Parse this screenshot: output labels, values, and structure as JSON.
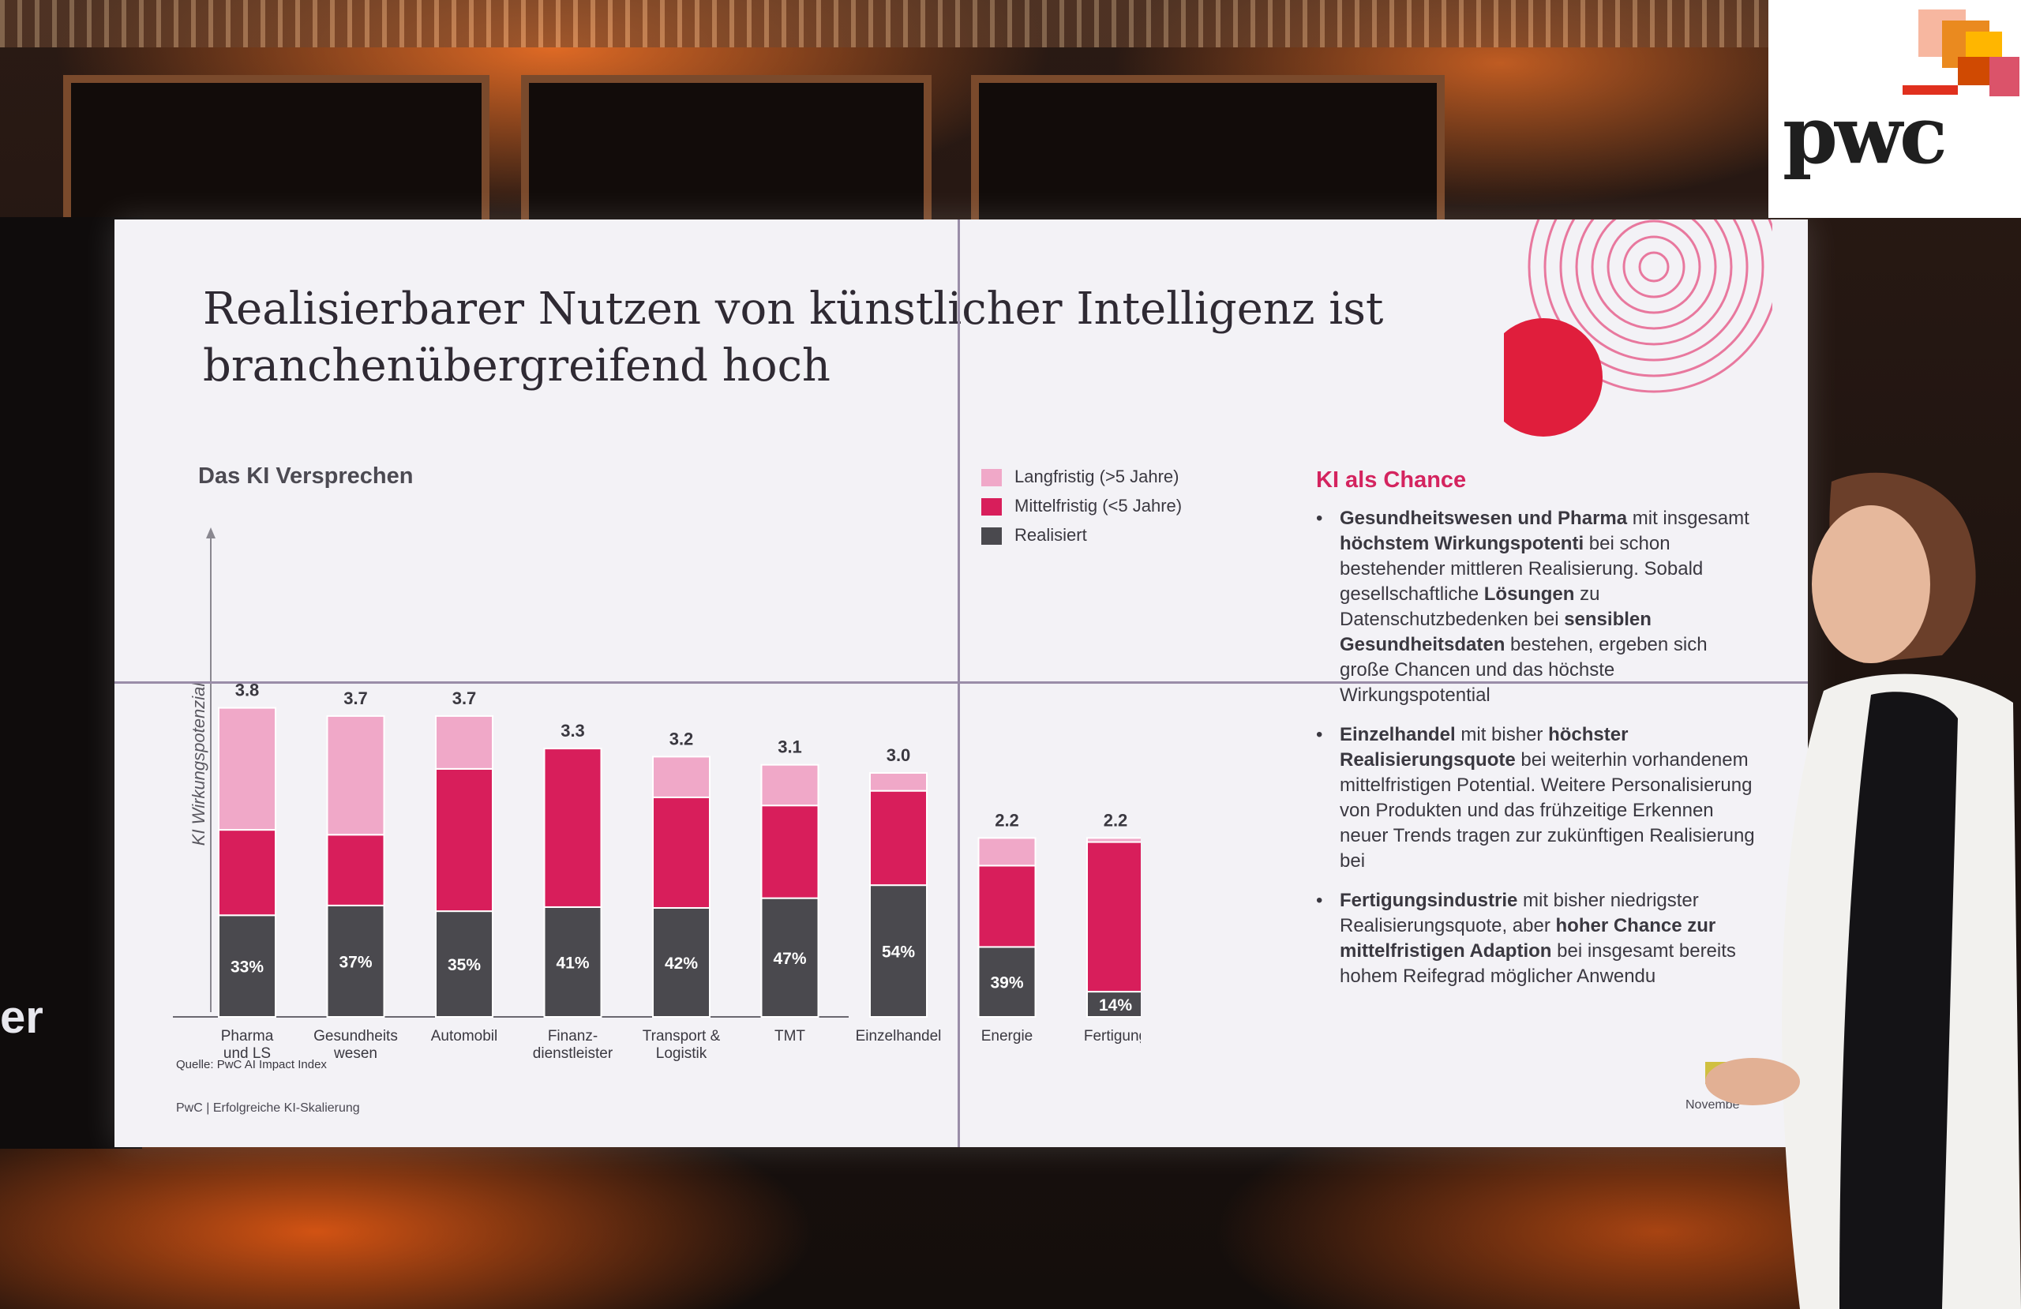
{
  "slide": {
    "title_line1": "Realisierbarer Nutzen von künstlicher Intelligenz ist",
    "title_line2": "branchenübergreifend hoch",
    "section_heading": "Das KI Versprechen",
    "source": "Quelle: PwC AI Impact Index",
    "footer": "PwC | Erfolgreiche KI-Skalierung",
    "footer_right": "Novembe"
  },
  "colors": {
    "langfristig": "#f0a8c8",
    "mittelfristig": "#d81e5b",
    "realisiert": "#4a494e",
    "accent": "#d4245f"
  },
  "chart_data": {
    "type": "bar",
    "stacked": true,
    "ylabel": "KI Wirkungspotenzial",
    "categories": [
      "Pharma und LS",
      "Gesundheitswesen",
      "Automobil",
      "Finanzdienstleister",
      "Transport & Logistik",
      "TMT",
      "Einzelhandel",
      "Energie",
      "Fertigung"
    ],
    "category_label_lines": [
      [
        "Pharma",
        "und LS"
      ],
      [
        "Gesundheits",
        "wesen"
      ],
      [
        "Automobil"
      ],
      [
        "Finanz-",
        "dienstleister"
      ],
      [
        "Transport &",
        "Logistik"
      ],
      [
        "TMT"
      ],
      [
        "Einzelhandel"
      ],
      [
        "Energie"
      ],
      [
        "Fertigung"
      ]
    ],
    "totals": [
      3.8,
      3.7,
      3.7,
      3.3,
      3.2,
      3.1,
      3.0,
      2.2,
      2.2
    ],
    "total_labels": [
      "3.8",
      "3.7",
      "3.7",
      "3.3",
      "3.2",
      "3.1",
      "3.0",
      "2.2",
      "2.2"
    ],
    "realized_share_labels": [
      "33%",
      "37%",
      "35%",
      "41%",
      "42%",
      "47%",
      "54%",
      "39%",
      "14%"
    ],
    "series": [
      {
        "name": "Realisiert",
        "values": [
          1.25,
          1.37,
          1.3,
          1.35,
          1.34,
          1.46,
          1.62,
          0.86,
          0.31
        ]
      },
      {
        "name": "Mittelfristig (<5 Jahre)",
        "values": [
          1.05,
          0.87,
          1.75,
          1.95,
          1.36,
          1.14,
          1.16,
          1.0,
          1.84
        ]
      },
      {
        "name": "Langfristig (>5 Jahre)",
        "values": [
          1.5,
          1.46,
          0.65,
          0.0,
          0.5,
          0.5,
          0.22,
          0.34,
          0.05
        ]
      }
    ],
    "legend_position": "top-right",
    "grid": false
  },
  "legend": [
    {
      "label": "Langfristig (>5 Jahre)",
      "color_key": "langfristig"
    },
    {
      "label": "Mittelfristig (<5 Jahre)",
      "color_key": "mittelfristig"
    },
    {
      "label": "Realisiert",
      "color_key": "realisiert"
    }
  ],
  "panel": {
    "title": "KI als Chance",
    "bullet_char": "•",
    "bullets": [
      [
        {
          "t": "Gesundheitswesen und Pharma",
          "b": true
        },
        {
          "t": " mit insgesamt ",
          "b": false
        },
        {
          "t": "höchstem Wirkungspotenti",
          "b": true
        },
        {
          "t": " bei schon bestehender mittleren Realisierung. Sobald gesellschaftliche ",
          "b": false
        },
        {
          "t": "Lösungen",
          "b": true
        },
        {
          "t": " zu Datenschutzbedenken bei ",
          "b": false
        },
        {
          "t": "sensiblen Gesundheitsdaten",
          "b": true
        },
        {
          "t": " bestehen, ergeben sich große Chancen und das höchste Wirkungspotential",
          "b": false
        }
      ],
      [
        {
          "t": "Einzelhandel",
          "b": true
        },
        {
          "t": " mit bisher ",
          "b": false
        },
        {
          "t": "höchster Realisierungsquote",
          "b": true
        },
        {
          "t": " bei weiterhin vorhandenem mittelfristigen Potential. Weitere Personalisierung von Produkten und das frühzeitige Erkennen neuer Trends tragen zur zukünftigen Realisierung bei",
          "b": false
        }
      ],
      [
        {
          "t": "Fertigungsindustrie",
          "b": true
        },
        {
          "t": " mit bisher niedrigster Realisierungsquote, aber ",
          "b": false
        },
        {
          "t": "hoher Chance zur mittelfristigen Adaption",
          "b": true
        },
        {
          "t": " bei insgesamt bereits hohem Reifegrad möglicher Anwendu",
          "b": false
        }
      ]
    ]
  },
  "stage": {
    "left_text": "er"
  },
  "logo": {
    "text": "pwc"
  }
}
